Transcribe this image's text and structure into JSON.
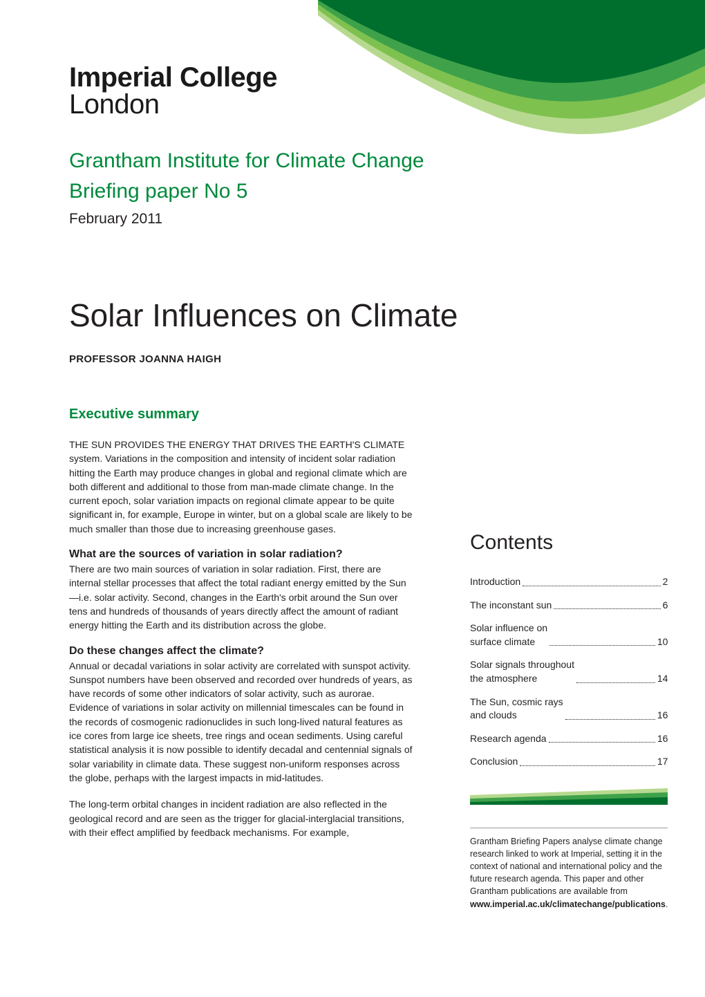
{
  "brand": {
    "logo_line1": "Imperial College",
    "logo_line2": "London",
    "swoosh_colors": {
      "dark": "#006f2e",
      "mid": "#3fa24a",
      "light": "#7ec14f",
      "pale": "#b7d98f"
    }
  },
  "header": {
    "institute_line1": "Grantham Institute for Climate Change",
    "institute_line2": "Briefing paper No 5",
    "date": "February 2011",
    "accent_color": "#008a3c"
  },
  "paper": {
    "title": "Solar Influences on Climate",
    "author": "PROFESSOR JOANNA HAIGH"
  },
  "executive_summary": {
    "heading": "Executive summary",
    "lead": "THE SUN PROVIDES THE ENERGY THAT DRIVES THE EARTH'S CLIMATE system. Variations in the composition and intensity of incident solar radiation hitting the Earth may produce changes in global and regional climate which are both different and additional to those from man-made climate change. In the current epoch, solar variation impacts on regional climate appear to be quite significant in, for example, Europe in winter, but on a global scale are likely to be much smaller than those due to increasing greenhouse gases.",
    "q1_heading": "What are the sources of variation in solar radiation?",
    "q1_body": "There are two main sources of variation in solar radiation. First, there are internal stellar processes that affect the total radiant energy emitted by the Sun—i.e. solar activity. Second, changes in the Earth's orbit around the Sun over tens and hundreds of thousands of years directly affect the amount of radiant energy hitting the Earth and its distribution across the globe.",
    "q2_heading": "Do these changes affect the climate?",
    "q2_body1": "Annual or decadal variations in solar activity are correlated with sunspot activity. Sunspot numbers have been observed and recorded over hundreds of years, as have records of some other indicators of solar activity, such as aurorae. Evidence of variations in solar activity on millennial timescales can be found in the records of cosmogenic radionuclides in such long-lived natural features as ice cores from large ice sheets, tree rings and ocean sediments. Using careful statistical analysis it is now possible to identify decadal and centennial signals of solar variability in climate data. These suggest non-uniform responses across the globe, perhaps with the largest impacts in mid-latitudes.",
    "q2_body2": "The long-term orbital changes in incident radiation are also reflected in the geological record and are seen as the trigger for glacial-interglacial transitions, with their effect amplified by feedback mechanisms. For example,"
  },
  "contents": {
    "heading": "Contents",
    "items": [
      {
        "label": "Introduction",
        "page": "2"
      },
      {
        "label": "The inconstant sun",
        "page": "6"
      },
      {
        "label": "Solar influence on\nsurface climate",
        "page": "10"
      },
      {
        "label": "Solar signals throughout\nthe atmosphere",
        "page": "14"
      },
      {
        "label": "The Sun, cosmic rays\nand clouds",
        "page": "16"
      },
      {
        "label": "Research agenda",
        "page": "16"
      },
      {
        "label": "Conclusion",
        "page": "17"
      }
    ],
    "accent_bar_colors": {
      "pale": "#b7d98f",
      "mid": "#3fa24a",
      "dark": "#006f2e"
    }
  },
  "footnote": {
    "text_prefix": "Grantham Briefing Papers analyse climate change research linked to work at Imperial, setting it in the context of national and international policy and the future research agenda. This paper and other Grantham publications are available from ",
    "link_text": "www.imperial.ac.uk/climatechange/publications",
    "text_suffix": "."
  },
  "typography": {
    "body_fontsize_pt": 10.5,
    "title_fontsize_pt": 34,
    "institute_fontsize_pt": 22,
    "body_color": "#231f20",
    "accent_color": "#008a3c"
  }
}
